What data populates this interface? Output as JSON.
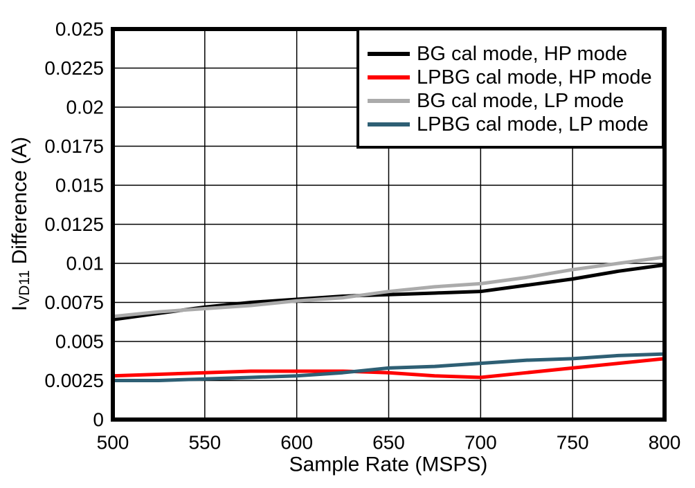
{
  "chart_data": {
    "type": "line",
    "title": "",
    "xlabel": "Sample Rate (MSPS)",
    "ylabel": {
      "prefix": "I",
      "sub": "VD11",
      "rest": " Difference (A)"
    },
    "xlim": [
      500,
      800
    ],
    "ylim": [
      0,
      0.025
    ],
    "grid": true,
    "legend_position": "top-right",
    "x_ticks": [
      500,
      550,
      600,
      650,
      700,
      750,
      800
    ],
    "x_tick_labels": [
      "500",
      "550",
      "600",
      "650",
      "700",
      "750",
      "800"
    ],
    "y_tick_values": [
      0,
      0.0025,
      0.005,
      0.0075,
      0.01,
      0.0125,
      0.015,
      0.0175,
      0.02,
      0.0225,
      0.025
    ],
    "y_tick_labels": [
      "0",
      "0.0025",
      "0.005",
      "0.0075",
      "0.01",
      "0.0125",
      "0.015",
      "0.0175",
      "0.02",
      "0.0225",
      "0.025"
    ],
    "x": [
      500,
      525,
      550,
      575,
      600,
      625,
      650,
      675,
      700,
      725,
      750,
      775,
      800
    ],
    "series": [
      {
        "name": "BG cal mode, HP mode",
        "color": "#000000",
        "values": [
          0.0064,
          0.0068,
          0.0072,
          0.0075,
          0.0077,
          0.0079,
          0.008,
          0.0081,
          0.0082,
          0.0086,
          0.009,
          0.0095,
          0.0099
        ]
      },
      {
        "name": "LPBG cal mode, HP mode",
        "color": "#FF0000",
        "values": [
          0.0028,
          0.0029,
          0.003,
          0.0031,
          0.0031,
          0.0031,
          0.003,
          0.0028,
          0.0027,
          0.003,
          0.0033,
          0.0036,
          0.0039
        ]
      },
      {
        "name": "BG cal mode, LP mode",
        "color": "#ABABAB",
        "values": [
          0.0066,
          0.0069,
          0.0071,
          0.0073,
          0.0076,
          0.0078,
          0.0082,
          0.0085,
          0.0087,
          0.0091,
          0.0096,
          0.01,
          0.0104
        ]
      },
      {
        "name": "LPBG cal mode, LP mode",
        "color": "#2E5F74",
        "values": [
          0.0025,
          0.0025,
          0.0026,
          0.0027,
          0.0028,
          0.003,
          0.0033,
          0.0034,
          0.0036,
          0.0038,
          0.0039,
          0.0041,
          0.0042
        ]
      }
    ],
    "colors": {
      "axis": "#000000",
      "gridline": "#000000",
      "background": "#ffffff",
      "legend_border": "#000000",
      "legend_background": "#ffffff"
    }
  }
}
